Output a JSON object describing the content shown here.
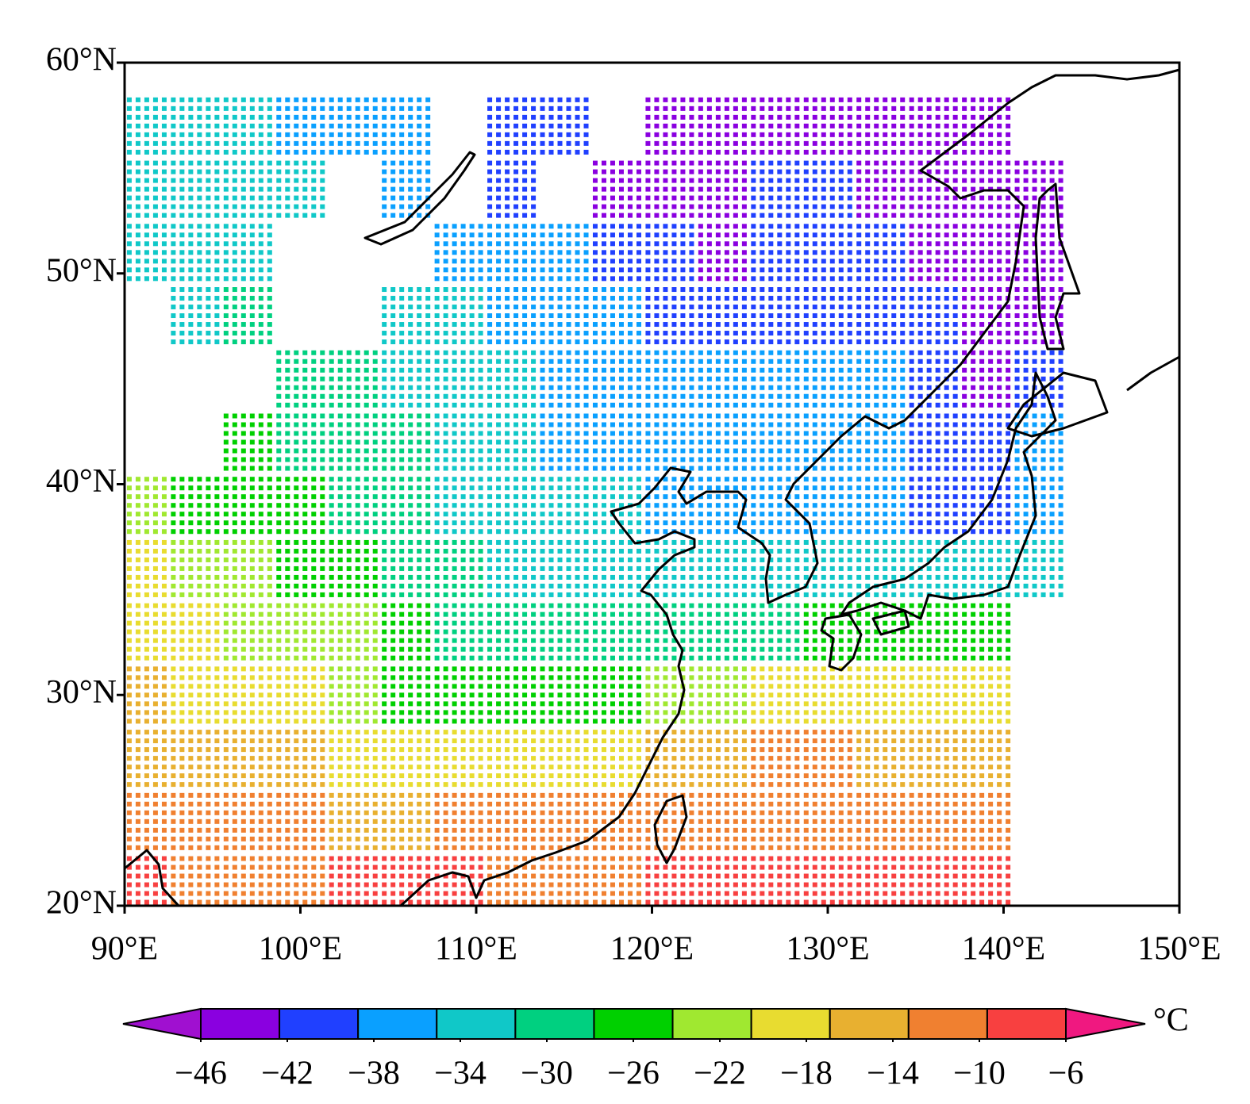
{
  "chart_data": {
    "type": "gridded-map",
    "unit": "°C",
    "xlim": [
      90,
      150
    ],
    "ylim": [
      20,
      60
    ],
    "xticks": [
      {
        "value": 90,
        "label": "90°E"
      },
      {
        "value": 100,
        "label": "100°E"
      },
      {
        "value": 110,
        "label": "110°E"
      },
      {
        "value": 120,
        "label": "120°E"
      },
      {
        "value": 130,
        "label": "130°E"
      },
      {
        "value": 140,
        "label": "140°E"
      },
      {
        "value": 150,
        "label": "150°E"
      }
    ],
    "yticks": [
      {
        "value": 20,
        "label": "20°N"
      },
      {
        "value": 30,
        "label": "30°N"
      },
      {
        "value": 40,
        "label": "40°N"
      },
      {
        "value": 50,
        "label": "50°N"
      },
      {
        "value": 60,
        "label": "60°N"
      }
    ],
    "lon": [
      91,
      94,
      97,
      100,
      103,
      106,
      109,
      112,
      115,
      118,
      121,
      124,
      127,
      130,
      133,
      136,
      139,
      142
    ],
    "lat": [
      57,
      54,
      51,
      48,
      45,
      42,
      39,
      36,
      33,
      30,
      27,
      24,
      21
    ],
    "values": [
      [
        -34,
        -34,
        -33,
        -36,
        -37,
        -38,
        null,
        -40,
        -42,
        null,
        -44,
        -45,
        -45,
        -44,
        -45,
        -46,
        -46,
        null
      ],
      [
        -33,
        -32,
        -34,
        -35,
        null,
        -38,
        null,
        -40,
        null,
        -43,
        -44,
        -44,
        -40,
        -42,
        -44,
        -45,
        -46,
        -46
      ],
      [
        -34,
        -32,
        -33,
        null,
        null,
        null,
        -36,
        -37,
        -38,
        -40,
        -42,
        -43,
        -40,
        -40,
        -42,
        -44,
        -45,
        -46
      ],
      [
        null,
        -33,
        -30,
        null,
        null,
        -33,
        -35,
        -36,
        -37,
        -38,
        -40,
        -41,
        -40,
        -40,
        -40,
        -42,
        -45,
        -44
      ],
      [
        null,
        null,
        null,
        -28,
        -30,
        -32,
        -33,
        -35,
        -36,
        -38,
        -38,
        -38,
        -38,
        -38,
        -38,
        -40,
        -44,
        -40
      ],
      [
        null,
        null,
        -27,
        -28,
        -29,
        -31,
        -33,
        -34,
        -36,
        -36,
        -36,
        -37,
        -38,
        -38,
        -38,
        -39,
        -40,
        -38
      ],
      [
        -24,
        -25,
        -26,
        -27,
        -29,
        -30,
        -32,
        -33,
        -34,
        -35,
        -36,
        -36,
        -36,
        -37,
        -38,
        -40,
        -40,
        -37
      ],
      [
        -20,
        -22,
        -24,
        -26,
        -27,
        -28,
        -30,
        -32,
        -33,
        -34,
        -35,
        -34,
        -33,
        -33,
        -34,
        -34,
        -33,
        -34
      ],
      [
        -19,
        -20,
        -21,
        -22,
        -24,
        -26,
        -28,
        -28,
        -28,
        -30,
        -31,
        -30,
        -28,
        -27,
        -27,
        -26,
        -25,
        null
      ],
      [
        -16,
        -17,
        -18,
        -19,
        -22,
        -26,
        -27,
        -26,
        -25,
        -25,
        -24,
        -22,
        -20,
        -20,
        -20,
        -20,
        -18,
        null
      ],
      [
        -14,
        -14,
        -15,
        -16,
        -17,
        -18,
        -18,
        -17,
        -17,
        -18,
        -16,
        -14,
        -13,
        -13,
        -14,
        -14,
        -15,
        null
      ],
      [
        -13,
        -12,
        -12,
        -13,
        -14,
        -14,
        -13,
        -12,
        -11,
        -12,
        -12,
        -11,
        -11,
        -12,
        -11,
        -12,
        -11,
        null
      ],
      [
        -9,
        -10,
        -11,
        -10,
        -8,
        -8,
        -9,
        -10,
        -10,
        -10,
        -9,
        -9,
        -8,
        -9,
        -8,
        -8,
        -7,
        null
      ]
    ],
    "colorbar": {
      "ticks": [
        {
          "value": -46,
          "label": "−46"
        },
        {
          "value": -42,
          "label": "−42"
        },
        {
          "value": -38,
          "label": "−38"
        },
        {
          "value": -34,
          "label": "−34"
        },
        {
          "value": -30,
          "label": "−30"
        },
        {
          "value": -26,
          "label": "−26"
        },
        {
          "value": -22,
          "label": "−22"
        },
        {
          "value": -18,
          "label": "−18"
        },
        {
          "value": -14,
          "label": "−14"
        },
        {
          "value": -10,
          "label": "−10"
        },
        {
          "value": -6,
          "label": "−6"
        }
      ],
      "colors": [
        "#a010d0",
        "#8a00e0",
        "#2040ff",
        "#0aa0ff",
        "#10c8c8",
        "#00d080",
        "#00d000",
        "#a0e830",
        "#e8dc30",
        "#e8b030",
        "#f08030",
        "#f84040",
        "#f01880"
      ]
    }
  }
}
